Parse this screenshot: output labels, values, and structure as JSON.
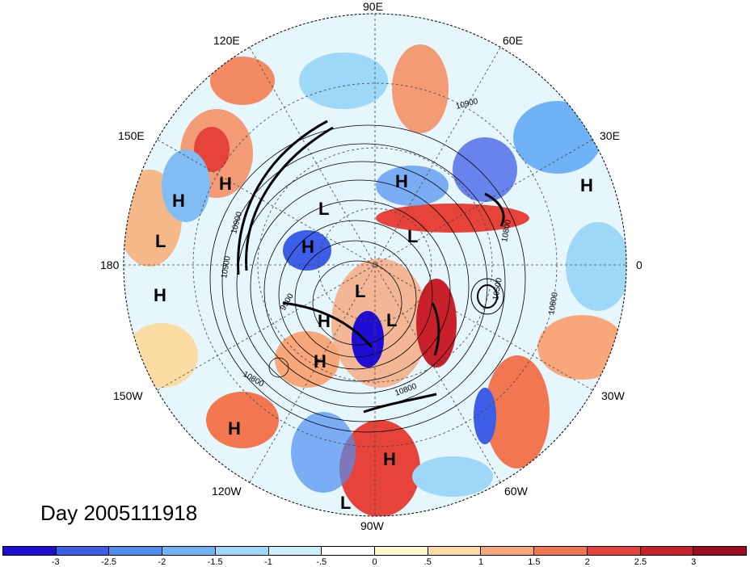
{
  "map": {
    "day_label": "Day 2005111918",
    "longitude_labels": [
      "90E",
      "60E",
      "30E",
      "0",
      "30W",
      "60W",
      "90W",
      "120W",
      "150W",
      "180",
      "150E",
      "120E"
    ],
    "contour_labels": [
      "10900",
      "10800",
      "10800",
      "10900",
      "9900",
      "10800",
      "10800",
      "10900",
      "10500"
    ],
    "pressure_centers": [
      {
        "type": "H"
      },
      {
        "type": "H"
      },
      {
        "type": "L"
      },
      {
        "type": "H"
      },
      {
        "type": "H"
      },
      {
        "type": "L"
      },
      {
        "type": "H"
      },
      {
        "type": "L"
      },
      {
        "type": "L"
      },
      {
        "type": "H"
      },
      {
        "type": "L"
      },
      {
        "type": "H"
      },
      {
        "type": "H"
      },
      {
        "type": "H"
      },
      {
        "type": "L"
      },
      {
        "type": "H"
      }
    ]
  },
  "colorbar": {
    "tick_labels": [
      "-3",
      "-2.5",
      "-2",
      "-1.5",
      "-1",
      "-.5",
      "0",
      ".5",
      "1",
      "1.5",
      "2",
      "2.5",
      "3"
    ],
    "colors": [
      "#1f0ed1",
      "#3d5ee6",
      "#4f8ef0",
      "#6fb2f5",
      "#9ed8f8",
      "#c9f0fb",
      "#ffffff",
      "#fff7cd",
      "#fbdca3",
      "#f7a77a",
      "#f2764f",
      "#e6443a",
      "#c9202b",
      "#9e0b1f"
    ]
  }
}
